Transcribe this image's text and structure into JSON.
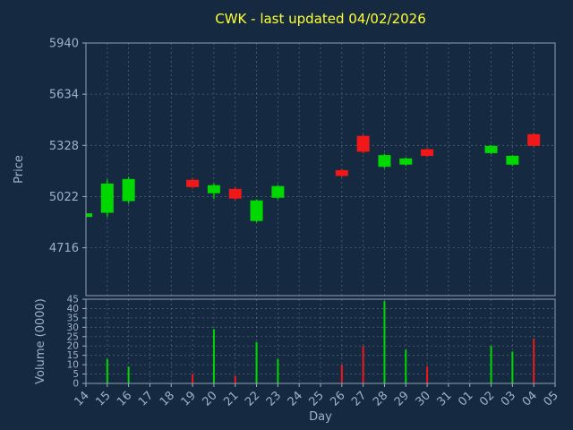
{
  "colors": {
    "background": "#152a40",
    "title": "#ffff33",
    "label": "#9fb0cc",
    "grid": "#7d8da0",
    "spine": "#8ea0b5"
  },
  "chart_data": {
    "type": "candlestick",
    "title": "CWK - last updated 04/02/2026",
    "xlabel": "Day",
    "ylabel": "Price",
    "ylabel2": "Volume (0000)",
    "x_categories": [
      "14",
      "15",
      "16",
      "17",
      "18",
      "19",
      "20",
      "21",
      "22",
      "23",
      "24",
      "25",
      "26",
      "27",
      "28",
      "29",
      "30",
      "31",
      "01",
      "02",
      "03",
      "04",
      "05"
    ],
    "price_ylim": [
      4430,
      5940
    ],
    "price_ticks": [
      5940,
      5634,
      5328,
      5022,
      4716
    ],
    "volume_ylim": [
      0,
      45
    ],
    "volume_ticks": [
      0,
      5,
      10,
      15,
      20,
      25,
      30,
      35,
      40,
      45
    ],
    "grid": true,
    "up_color": "#00d800",
    "down_color": "#f01818",
    "candles": [
      {
        "day": "14",
        "open": 4900,
        "high": 4928,
        "low": 4893,
        "close": 4922,
        "volume": 0
      },
      {
        "day": "15",
        "open": 4925,
        "high": 5125,
        "low": 4900,
        "close": 5100,
        "volume": 13
      },
      {
        "day": "16",
        "open": 4995,
        "high": 5140,
        "low": 4980,
        "close": 5127,
        "volume": 9
      },
      {
        "day": "19",
        "open": 5122,
        "high": 5132,
        "low": 5070,
        "close": 5079,
        "volume": 5
      },
      {
        "day": "20",
        "open": 5042,
        "high": 5100,
        "low": 5008,
        "close": 5090,
        "volume": 29
      },
      {
        "day": "21",
        "open": 5068,
        "high": 5078,
        "low": 5000,
        "close": 5010,
        "volume": 4
      },
      {
        "day": "22",
        "open": 4876,
        "high": 5005,
        "low": 4868,
        "close": 4999,
        "volume": 22
      },
      {
        "day": "23",
        "open": 5015,
        "high": 5092,
        "low": 5006,
        "close": 5085,
        "volume": 13
      },
      {
        "day": "26",
        "open": 5180,
        "high": 5188,
        "low": 5138,
        "close": 5145,
        "volume": 10
      },
      {
        "day": "27",
        "open": 5385,
        "high": 5392,
        "low": 5280,
        "close": 5290,
        "volume": 20
      },
      {
        "day": "28",
        "open": 5200,
        "high": 5278,
        "low": 5192,
        "close": 5270,
        "volume": 44
      },
      {
        "day": "29",
        "open": 5213,
        "high": 5255,
        "low": 5205,
        "close": 5250,
        "volume": 18
      },
      {
        "day": "30",
        "open": 5305,
        "high": 5312,
        "low": 5258,
        "close": 5265,
        "volume": 9
      },
      {
        "day": "02",
        "open": 5282,
        "high": 5330,
        "low": 5275,
        "close": 5325,
        "volume": 20
      },
      {
        "day": "03",
        "open": 5213,
        "high": 5270,
        "low": 5205,
        "close": 5266,
        "volume": 17
      },
      {
        "day": "04",
        "open": 5395,
        "high": 5400,
        "low": 5320,
        "close": 5325,
        "volume": 24
      }
    ]
  }
}
